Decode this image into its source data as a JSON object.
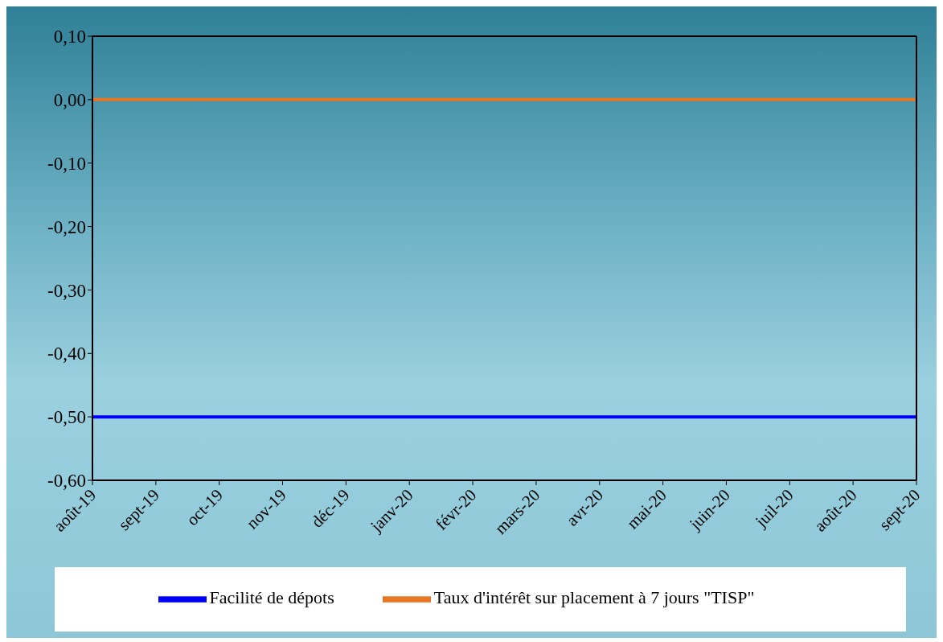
{
  "chart_data": {
    "type": "line",
    "categories": [
      "août-19",
      "sept-19",
      "oct-19",
      "nov-19",
      "déc-19",
      "janv-20",
      "févr-20",
      "mars-20",
      "avr-20",
      "mai-20",
      "juin-20",
      "juil-20",
      "août-20",
      "sept-20"
    ],
    "series": [
      {
        "name": "Taux d'intérêt sur placement à 7 jours \"TISP\"",
        "color": "#e87722",
        "values": [
          0,
          0,
          0,
          0,
          0,
          0,
          0,
          0,
          0,
          0,
          0,
          0,
          0,
          0
        ]
      },
      {
        "name": "Facilité de dépots",
        "color": "#0000ff",
        "values": [
          -0.5,
          -0.5,
          -0.5,
          -0.5,
          -0.5,
          -0.5,
          -0.5,
          -0.5,
          -0.5,
          -0.5,
          -0.5,
          -0.5,
          -0.5,
          -0.5
        ]
      }
    ],
    "ylim": [
      -0.6,
      0.1
    ],
    "yticks": [
      {
        "value": 0.1,
        "label": "0,10"
      },
      {
        "value": 0,
        "label": "0,00"
      },
      {
        "value": -0.1,
        "label": "-0,10"
      },
      {
        "value": -0.2,
        "label": "-0,20"
      },
      {
        "value": -0.3,
        "label": "-0,30"
      },
      {
        "value": -0.4,
        "label": "-0,40"
      },
      {
        "value": -0.5,
        "label": "-0,50"
      },
      {
        "value": -0.6,
        "label": "-0,60"
      }
    ],
    "legend": "bottom",
    "marker": "none",
    "line_style": "solid"
  }
}
